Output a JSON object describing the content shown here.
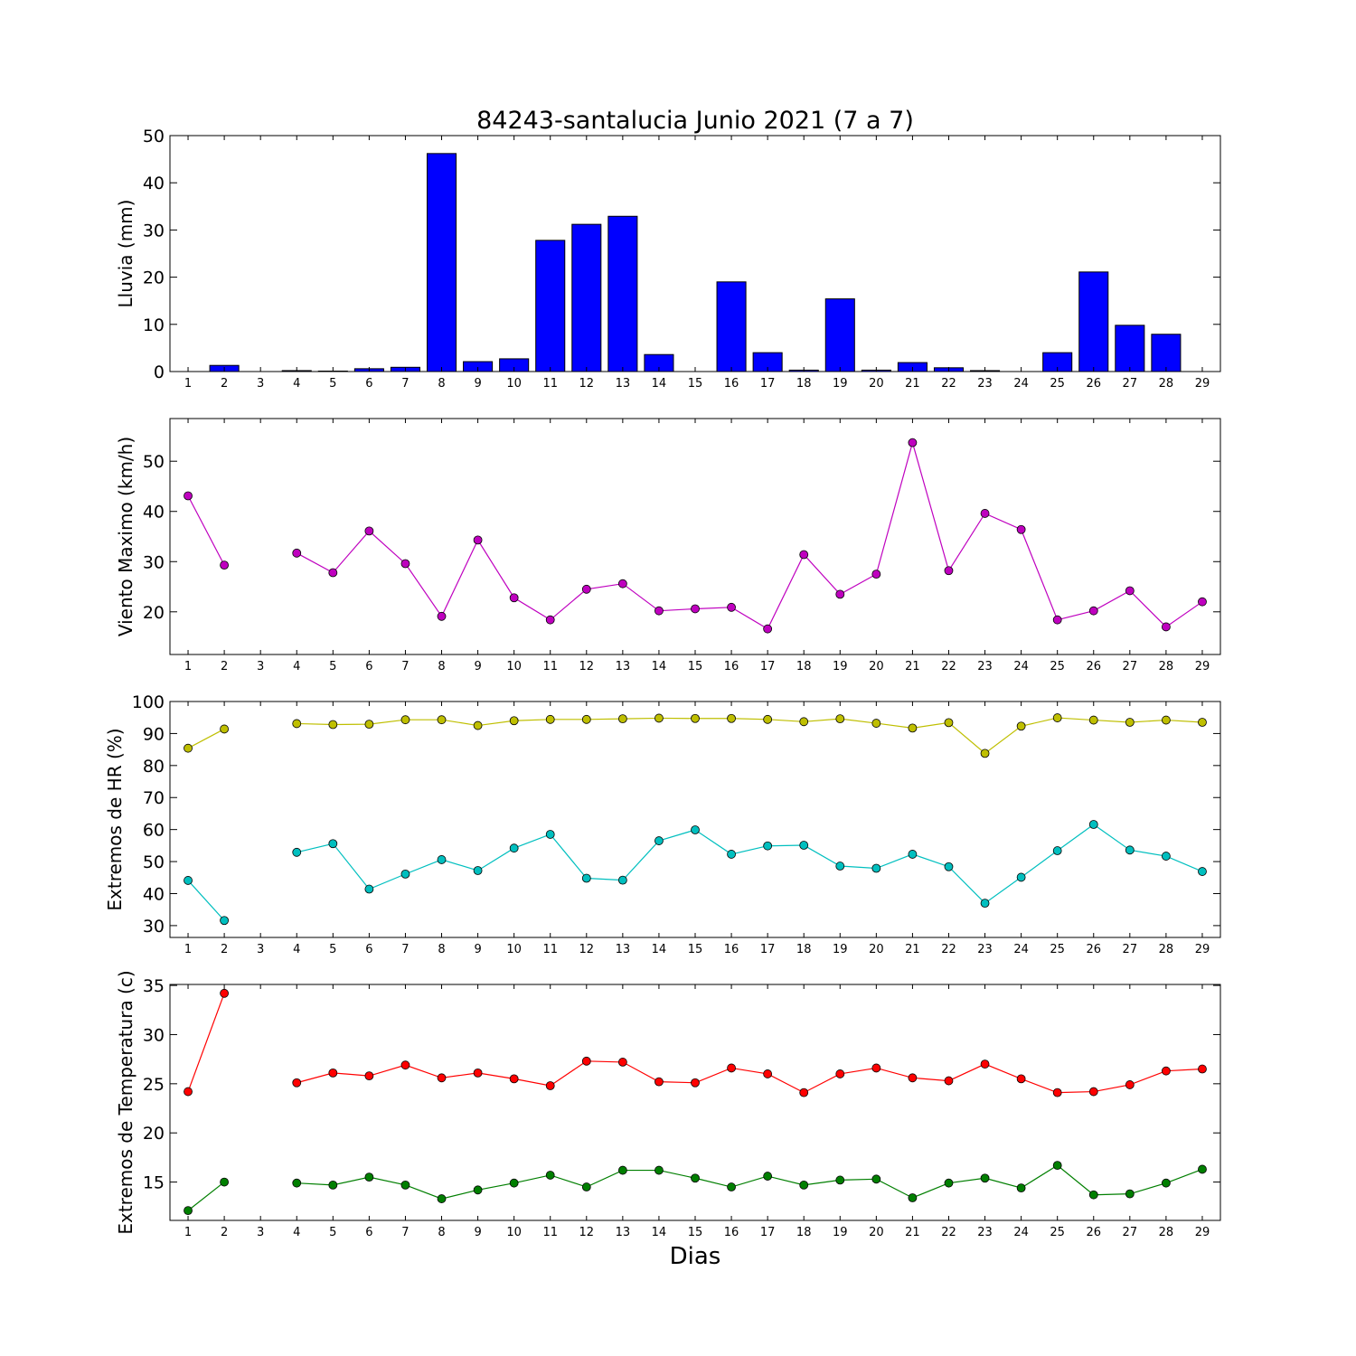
{
  "title": "84243-santalucia Junio 2021  (7 a 7)",
  "xlabel": "Dias",
  "chart_data": [
    {
      "type": "bar",
      "ylabel": "Lluvia (mm)",
      "x": [
        1,
        2,
        3,
        4,
        5,
        6,
        7,
        8,
        9,
        10,
        11,
        12,
        13,
        14,
        15,
        16,
        17,
        18,
        19,
        20,
        21,
        22,
        23,
        24,
        25,
        26,
        27,
        28,
        29
      ],
      "xlim": [
        0.5,
        29.5
      ],
      "ylim": [
        0,
        50
      ],
      "yticks": [
        0,
        10,
        20,
        30,
        40,
        50
      ],
      "grid": false,
      "series": [
        {
          "color": "#0000ff",
          "values": [
            0,
            1.3,
            0,
            0.2,
            0.1,
            0.6,
            0.9,
            46.2,
            2.1,
            2.7,
            27.8,
            31.2,
            32.9,
            3.6,
            0,
            19,
            4,
            0.3,
            15.4,
            0.3,
            1.9,
            0.8,
            0.2,
            0,
            4,
            21.1,
            9.8,
            7.9,
            0
          ]
        }
      ]
    },
    {
      "type": "line",
      "ylabel": "Viento Maximo (km/h)",
      "x": [
        1,
        2,
        3,
        4,
        5,
        6,
        7,
        8,
        9,
        10,
        11,
        12,
        13,
        14,
        15,
        16,
        17,
        18,
        19,
        20,
        21,
        22,
        23,
        24,
        25,
        26,
        27,
        28,
        29
      ],
      "xlim": [
        0.5,
        29.5
      ],
      "ylim": [
        11.5,
        58.5
      ],
      "yticks": [
        20,
        30,
        40,
        50
      ],
      "grid": false,
      "series": [
        {
          "color": "#bf00bf",
          "values": [
            43.1,
            29.3,
            null,
            31.7,
            27.8,
            36.1,
            29.6,
            19.1,
            34.3,
            22.8,
            18.4,
            24.5,
            25.6,
            20.2,
            20.6,
            20.9,
            16.6,
            31.4,
            23.5,
            27.5,
            53.7,
            28.2,
            39.6,
            36.4,
            18.4,
            20.2,
            24.2,
            17,
            22
          ]
        }
      ]
    },
    {
      "type": "line",
      "ylabel": "Extremos de HR (%)",
      "x": [
        1,
        2,
        3,
        4,
        5,
        6,
        7,
        8,
        9,
        10,
        11,
        12,
        13,
        14,
        15,
        16,
        17,
        18,
        19,
        20,
        21,
        22,
        23,
        24,
        25,
        26,
        27,
        28,
        29
      ],
      "xlim": [
        0.5,
        29.5
      ],
      "ylim": [
        26.3,
        100
      ],
      "yticks": [
        30,
        40,
        50,
        60,
        70,
        80,
        90,
        100
      ],
      "grid": false,
      "series": [
        {
          "color": "#bfbf00",
          "values": [
            85.4,
            91.4,
            null,
            93.1,
            92.8,
            92.9,
            94.3,
            94.3,
            92.5,
            94,
            94.4,
            94.4,
            94.6,
            94.8,
            94.7,
            94.7,
            94.4,
            93.7,
            94.6,
            93.2,
            91.7,
            93.4,
            83.8,
            92.3,
            94.9,
            94.2,
            93.5,
            94.2,
            93.5
          ]
        },
        {
          "color": "#00bfbf",
          "values": [
            44.1,
            31.6,
            null,
            52.9,
            55.6,
            41.4,
            46.1,
            50.6,
            47.2,
            54.2,
            58.5,
            44.8,
            44.2,
            56.5,
            59.9,
            52.3,
            54.9,
            55.1,
            48.6,
            47.9,
            52.3,
            48.4,
            37,
            45.1,
            53.4,
            61.6,
            53.6,
            51.7,
            46.9
          ]
        }
      ]
    },
    {
      "type": "line",
      "ylabel": "Extremos de Temperatura (c)",
      "x": [
        1,
        2,
        3,
        4,
        5,
        6,
        7,
        8,
        9,
        10,
        11,
        12,
        13,
        14,
        15,
        16,
        17,
        18,
        19,
        20,
        21,
        22,
        23,
        24,
        25,
        26,
        27,
        28,
        29
      ],
      "xlim": [
        0.5,
        29.5
      ],
      "ylim": [
        11.1,
        35.1
      ],
      "yticks": [
        15,
        20,
        25,
        30,
        35
      ],
      "grid": false,
      "series": [
        {
          "color": "#ff0000",
          "values": [
            24.2,
            34.2,
            null,
            25.1,
            26.1,
            25.8,
            26.9,
            25.6,
            26.1,
            25.5,
            24.8,
            27.3,
            27.2,
            25.2,
            25.1,
            26.6,
            26,
            24.1,
            26,
            26.6,
            25.6,
            25.3,
            27,
            25.5,
            24.1,
            24.2,
            24.9,
            26.3,
            26.5
          ]
        },
        {
          "color": "#007f00",
          "values": [
            12.1,
            15,
            null,
            14.9,
            14.7,
            15.5,
            14.7,
            13.3,
            14.2,
            14.9,
            15.7,
            14.5,
            16.2,
            16.2,
            15.4,
            14.5,
            15.6,
            14.7,
            15.2,
            15.3,
            13.4,
            14.9,
            15.4,
            14.4,
            16.7,
            13.7,
            13.8,
            14.9,
            16.3
          ]
        }
      ]
    }
  ]
}
